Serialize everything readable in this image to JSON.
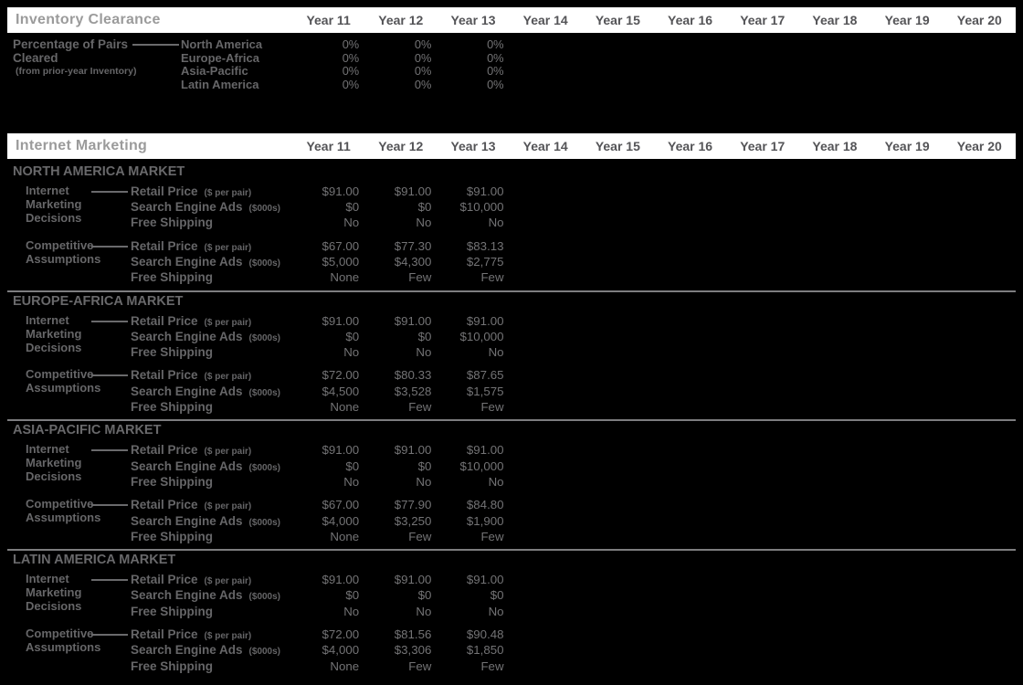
{
  "years": [
    "Year 11",
    "Year 12",
    "Year 13",
    "Year 14",
    "Year 15",
    "Year 16",
    "Year 17",
    "Year 18",
    "Year 19",
    "Year 20"
  ],
  "inventory_clearance": {
    "title": "Inventory Clearance",
    "label": {
      "line1": "Percentage of Pairs",
      "line2": "Cleared",
      "note": "(from prior-year Inventory)"
    },
    "regions": [
      {
        "name": "North America",
        "values": [
          "0%",
          "0%",
          "0%"
        ]
      },
      {
        "name": "Europe-Africa",
        "values": [
          "0%",
          "0%",
          "0%"
        ]
      },
      {
        "name": "Asia-Pacific",
        "values": [
          "0%",
          "0%",
          "0%"
        ]
      },
      {
        "name": "Latin America",
        "values": [
          "0%",
          "0%",
          "0%"
        ]
      }
    ]
  },
  "internet_marketing": {
    "title": "Internet Marketing",
    "group_labels": {
      "decisions": [
        "Internet",
        "Marketing",
        "Decisions"
      ],
      "competitive": [
        "Competitive",
        "Assumptions"
      ]
    },
    "markets": [
      {
        "name": "NORTH AMERICA MARKET",
        "decisions": [
          {
            "label": "Retail Price",
            "unit": "($ per pair)",
            "values": [
              "$91.00",
              "$91.00",
              "$91.00"
            ]
          },
          {
            "label": "Search Engine Ads",
            "unit": "($000s)",
            "values": [
              "$0",
              "$0",
              "$10,000"
            ]
          },
          {
            "label": "Free Shipping",
            "unit": "",
            "values": [
              "No",
              "No",
              "No"
            ]
          }
        ],
        "competitive": [
          {
            "label": "Retail Price",
            "unit": "($ per pair)",
            "values": [
              "$67.00",
              "$77.30",
              "$83.13"
            ]
          },
          {
            "label": "Search Engine Ads",
            "unit": "($000s)",
            "values": [
              "$5,000",
              "$4,300",
              "$2,775"
            ]
          },
          {
            "label": "Free Shipping",
            "unit": "",
            "values": [
              "None",
              "Few",
              "Few"
            ]
          }
        ]
      },
      {
        "name": "EUROPE-AFRICA MARKET",
        "decisions": [
          {
            "label": "Retail Price",
            "unit": "($ per pair)",
            "values": [
              "$91.00",
              "$91.00",
              "$91.00"
            ]
          },
          {
            "label": "Search Engine Ads",
            "unit": "($000s)",
            "values": [
              "$0",
              "$0",
              "$10,000"
            ]
          },
          {
            "label": "Free Shipping",
            "unit": "",
            "values": [
              "No",
              "No",
              "No"
            ]
          }
        ],
        "competitive": [
          {
            "label": "Retail Price",
            "unit": "($ per pair)",
            "values": [
              "$72.00",
              "$80.33",
              "$87.65"
            ]
          },
          {
            "label": "Search Engine Ads",
            "unit": "($000s)",
            "values": [
              "$4,500",
              "$3,528",
              "$1,575"
            ]
          },
          {
            "label": "Free Shipping",
            "unit": "",
            "values": [
              "None",
              "Few",
              "Few"
            ]
          }
        ]
      },
      {
        "name": "ASIA-PACIFIC MARKET",
        "decisions": [
          {
            "label": "Retail Price",
            "unit": "($ per pair)",
            "values": [
              "$91.00",
              "$91.00",
              "$91.00"
            ]
          },
          {
            "label": "Search Engine Ads",
            "unit": "($000s)",
            "values": [
              "$0",
              "$0",
              "$10,000"
            ]
          },
          {
            "label": "Free Shipping",
            "unit": "",
            "values": [
              "No",
              "No",
              "No"
            ]
          }
        ],
        "competitive": [
          {
            "label": "Retail Price",
            "unit": "($ per pair)",
            "values": [
              "$67.00",
              "$77.90",
              "$84.80"
            ]
          },
          {
            "label": "Search Engine Ads",
            "unit": "($000s)",
            "values": [
              "$4,000",
              "$3,250",
              "$1,900"
            ]
          },
          {
            "label": "Free Shipping",
            "unit": "",
            "values": [
              "None",
              "Few",
              "Few"
            ]
          }
        ]
      },
      {
        "name": "LATIN AMERICA MARKET",
        "decisions": [
          {
            "label": "Retail Price",
            "unit": "($ per pair)",
            "values": [
              "$91.00",
              "$91.00",
              "$91.00"
            ]
          },
          {
            "label": "Search Engine Ads",
            "unit": "($000s)",
            "values": [
              "$0",
              "$0",
              "$0"
            ]
          },
          {
            "label": "Free Shipping",
            "unit": "",
            "values": [
              "No",
              "No",
              "No"
            ]
          }
        ],
        "competitive": [
          {
            "label": "Retail Price",
            "unit": "($ per pair)",
            "values": [
              "$72.00",
              "$81.56",
              "$90.48"
            ]
          },
          {
            "label": "Search Engine Ads",
            "unit": "($000s)",
            "values": [
              "$4,000",
              "$3,306",
              "$1,850"
            ]
          },
          {
            "label": "Free Shipping",
            "unit": "",
            "values": [
              "None",
              "Few",
              "Few"
            ]
          }
        ]
      }
    ]
  }
}
